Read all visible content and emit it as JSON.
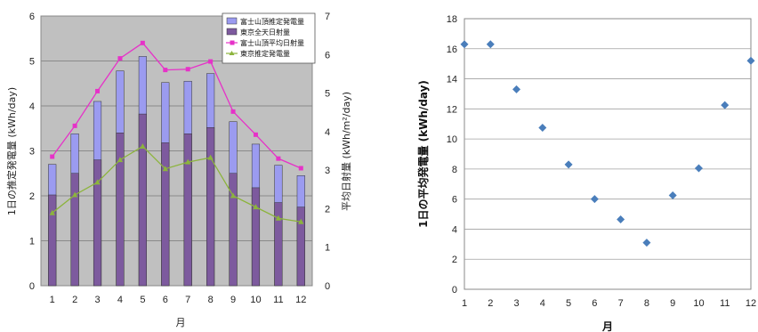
{
  "chart_data": [
    {
      "type": "bar",
      "title": "",
      "categories": [
        "1",
        "2",
        "3",
        "4",
        "5",
        "6",
        "7",
        "8",
        "9",
        "10",
        "11",
        "12"
      ],
      "xlabel": "月",
      "ylabel": "1日の推定発電量 (kWh/day)",
      "ylabel2": "平均日射量 (kWh/m²/day)",
      "ylim": [
        0,
        6
      ],
      "ylim2": [
        0,
        7
      ],
      "yticks": [
        "0",
        "1",
        "2",
        "3",
        "4",
        "5",
        "6"
      ],
      "yticks2": [
        "0",
        "1",
        "2",
        "3",
        "4",
        "5",
        "6",
        "7"
      ],
      "grid": true,
      "legend_position": "top-right",
      "series": [
        {
          "name": "富士山頂推定発電量",
          "kind": "bar",
          "axis": "left",
          "color": "#9b9bf0",
          "values": [
            2.7,
            3.38,
            4.1,
            4.78,
            5.1,
            4.52,
            4.55,
            4.72,
            3.65,
            3.15,
            2.68,
            2.45
          ]
        },
        {
          "name": "東京全天日射量",
          "kind": "bar",
          "axis": "left",
          "color": "#7d5a9e",
          "values": [
            2.02,
            2.5,
            2.8,
            3.4,
            3.82,
            3.18,
            3.38,
            3.52,
            2.5,
            2.18,
            1.85,
            1.75
          ]
        },
        {
          "name": "富士山頂平均日射量",
          "kind": "line",
          "axis": "right",
          "color": "#e632c8",
          "values": [
            3.35,
            4.15,
            5.05,
            5.9,
            6.3,
            5.6,
            5.62,
            5.82,
            4.52,
            3.92,
            3.3,
            3.05
          ]
        },
        {
          "name": "東京推定発電量",
          "kind": "line",
          "axis": "left",
          "color": "#8cb43c",
          "values": [
            1.62,
            2.02,
            2.3,
            2.8,
            3.1,
            2.6,
            2.75,
            2.85,
            2.0,
            1.75,
            1.5,
            1.42
          ]
        }
      ]
    },
    {
      "type": "scatter",
      "title": "",
      "xlabel": "月",
      "ylabel": "1日の平均発電量 (kWh/day)",
      "xlim": [
        1,
        12
      ],
      "ylim": [
        0,
        18
      ],
      "xticks": [
        "1",
        "2",
        "3",
        "4",
        "5",
        "6",
        "7",
        "8",
        "9",
        "10",
        "11",
        "12"
      ],
      "yticks": [
        "0",
        "2",
        "4",
        "6",
        "8",
        "10",
        "12",
        "14",
        "16",
        "18"
      ],
      "grid": true,
      "color": "#4a7ebb",
      "x": [
        1,
        2,
        3,
        4,
        5,
        6,
        7,
        8,
        9,
        10,
        11,
        12
      ],
      "y": [
        16.3,
        16.3,
        13.3,
        10.75,
        8.3,
        6.0,
        4.65,
        3.1,
        6.25,
        8.05,
        12.25,
        15.2
      ]
    }
  ]
}
